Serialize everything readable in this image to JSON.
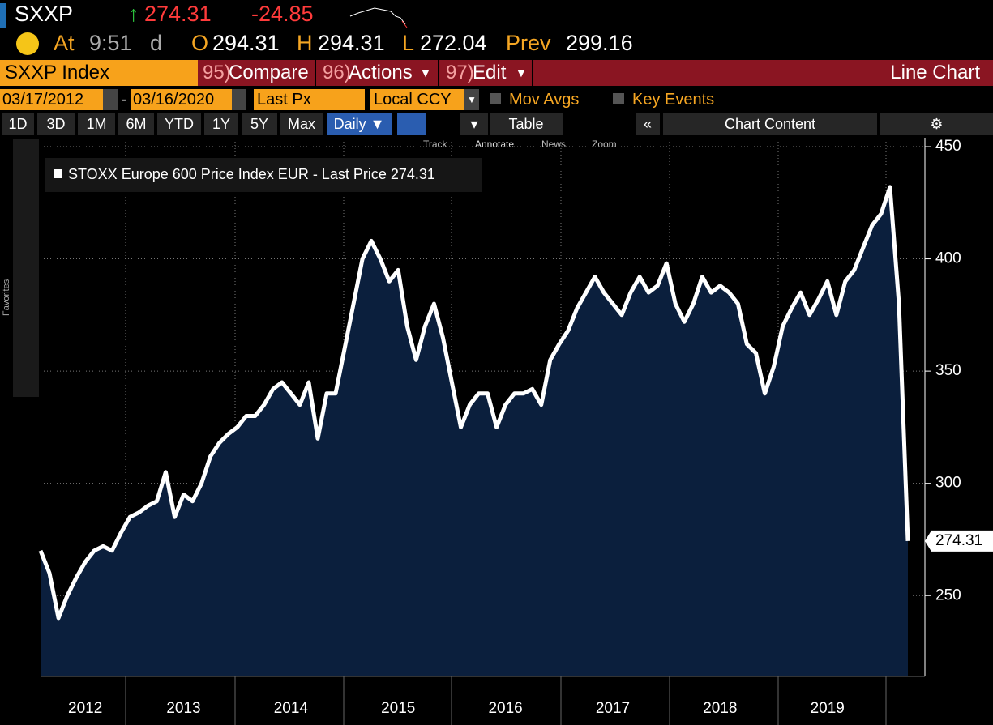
{
  "header": {
    "ticker": "SXXP",
    "price": "274.31",
    "change": "-24.85",
    "at": "At",
    "time": "9:51",
    "time_suffix": "d",
    "open_label": "O",
    "open": "294.31",
    "high_label": "H",
    "high": "294.31",
    "low_label": "L",
    "low": "272.04",
    "prev_label": "Prev",
    "prev": "299.16"
  },
  "toolbar": {
    "security": "SXXP Index",
    "buttons": [
      {
        "num": "95)",
        "label": "Compare"
      },
      {
        "num": "96)",
        "label": "Actions"
      },
      {
        "num": "97)",
        "label": "Edit"
      }
    ],
    "chart_type": "Line Chart"
  },
  "settings": {
    "start_date": "03/17/2012",
    "end_date": "03/16/2020",
    "field": "Last Px",
    "currency": "Local CCY",
    "mov_avgs": "Mov Avgs",
    "key_events": "Key Events"
  },
  "periods": [
    "1D",
    "3D",
    "1M",
    "6M",
    "YTD",
    "1Y",
    "5Y",
    "Max"
  ],
  "frequency": "Daily",
  "table": "Table",
  "chart_content": "Chart Content",
  "chart_tools": [
    "Track",
    "Annotate",
    "News",
    "Zoom"
  ],
  "sidebar": "Favorites",
  "chart_data": {
    "type": "area",
    "categories": [
      null,
      null,
      null,
      null,
      null,
      "2012",
      null,
      null,
      null,
      null,
      null,
      null,
      null,
      null,
      null,
      null,
      "2013",
      null,
      null,
      null,
      null,
      null,
      null,
      null,
      null,
      null,
      null,
      null,
      "2014",
      null,
      null,
      null,
      null,
      null,
      null,
      null,
      null,
      null,
      null,
      null,
      "2015",
      null,
      null,
      null,
      null,
      null,
      null,
      null,
      null,
      null,
      null,
      null,
      "2016",
      null,
      null,
      null,
      null,
      null,
      null,
      null,
      null,
      null,
      null,
      null,
      "2017",
      null,
      null,
      null,
      null,
      null,
      null,
      null,
      null,
      null,
      null,
      null,
      "2018",
      null,
      null,
      null,
      null,
      null,
      null,
      null,
      null,
      null,
      null,
      null,
      "2019",
      null,
      null,
      null,
      null,
      null,
      null,
      null,
      null,
      null
    ],
    "series": [
      {
        "name": "STOXX Europe 600 Price Index EUR - Last Price 274.31",
        "color": "#ffffff",
        "fill": "#0b1f3d",
        "values": [
          270,
          260,
          240,
          250,
          258,
          265,
          270,
          272,
          270,
          278,
          285,
          287,
          290,
          292,
          305,
          285,
          295,
          292,
          300,
          312,
          318,
          322,
          325,
          330,
          330,
          335,
          342,
          345,
          340,
          335,
          345,
          320,
          340,
          340,
          360,
          380,
          400,
          408,
          400,
          390,
          395,
          370,
          355,
          370,
          380,
          365,
          345,
          325,
          335,
          340,
          340,
          325,
          335,
          340,
          340,
          342,
          335,
          355,
          362,
          368,
          378,
          385,
          392,
          385,
          380,
          375,
          385,
          392,
          385,
          388,
          398,
          380,
          372,
          380,
          392,
          385,
          388,
          385,
          380,
          362,
          358,
          340,
          352,
          370,
          378,
          385,
          375,
          382,
          390,
          375,
          390,
          395,
          405,
          415,
          420,
          432,
          380,
          274.31
        ]
      }
    ],
    "ylim": [
      214,
      450
    ],
    "yticks": [
      250,
      300,
      350,
      400,
      450
    ],
    "grid": true
  }
}
